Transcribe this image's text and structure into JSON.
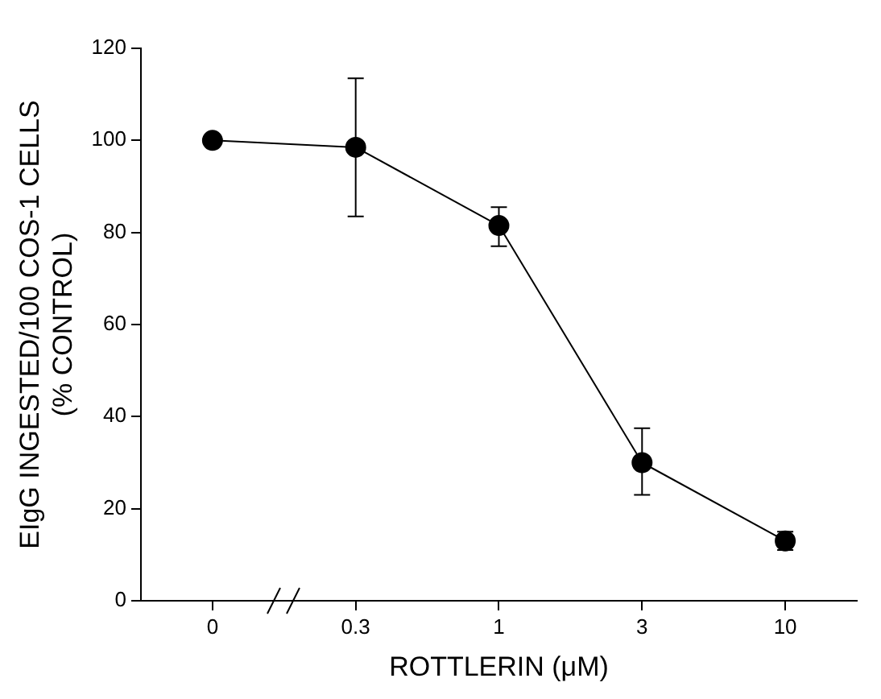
{
  "chart_data": {
    "type": "line",
    "xlabel": "ROTTLERIN (μM)",
    "ylabel": "EIgG INGESTED/100 COS-1 CELLS\n(% CONTROL)",
    "categories": [
      "0",
      "0.3",
      "1",
      "3",
      "10"
    ],
    "series": [
      {
        "color": "#000000",
        "values": [
          100,
          98.5,
          81.5,
          30,
          13
        ],
        "errors": [
          null,
          [
            83.5,
            113.5
          ],
          [
            77,
            85.5
          ],
          [
            23,
            37.5
          ],
          [
            11,
            15
          ]
        ]
      }
    ],
    "ylim": [
      0,
      120
    ],
    "yticks": [
      0,
      20,
      40,
      60,
      80,
      100,
      120
    ],
    "grid": false,
    "legend": false,
    "marker": "circle",
    "line_style": "solid"
  }
}
